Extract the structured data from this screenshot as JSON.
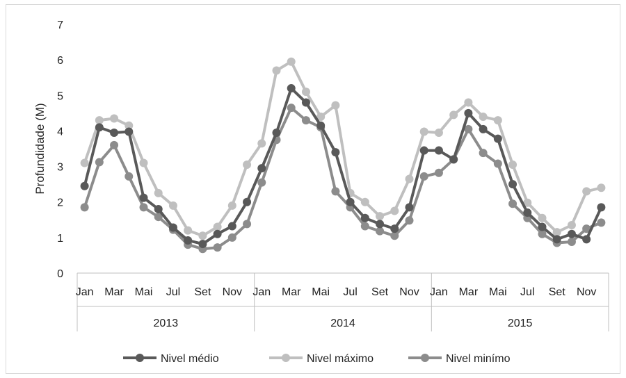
{
  "chart_data": {
    "type": "line",
    "title": "",
    "ylabel": "Profundidade (M)",
    "xlabel": "",
    "ylim": [
      0,
      7
    ],
    "y_ticks": [
      "0",
      "1",
      "2",
      "3",
      "4",
      "5",
      "6",
      "7"
    ],
    "x_tick_labels": [
      "Jan",
      "Mar",
      "Mai",
      "Jul",
      "Set",
      "Nov",
      "Jan",
      "Mar",
      "Mai",
      "Jul",
      "Set",
      "Nov",
      "Jan",
      "Mar",
      "Mai",
      "Jul",
      "Set",
      "Nov"
    ],
    "years": [
      "2013",
      "2014",
      "2015"
    ],
    "months_per_year": 12,
    "grid": false,
    "legend_position": "bottom",
    "series": [
      {
        "name": "Nivel médio",
        "color": "#595959",
        "values": [
          2.45,
          4.1,
          3.95,
          3.98,
          2.12,
          1.8,
          1.28,
          0.92,
          0.82,
          1.1,
          1.32,
          2.0,
          2.95,
          3.95,
          5.2,
          4.8,
          4.15,
          3.4,
          2.0,
          1.55,
          1.38,
          1.25,
          1.85,
          3.45,
          3.45,
          3.2,
          4.5,
          4.05,
          3.78,
          2.5,
          1.7,
          1.3,
          0.95,
          1.1,
          0.95,
          1.85
        ]
      },
      {
        "name": "Nivel máximo",
        "color": "#bfbfbf",
        "values": [
          3.1,
          4.3,
          4.35,
          4.15,
          3.1,
          2.25,
          1.9,
          1.2,
          1.05,
          1.3,
          1.9,
          3.05,
          3.65,
          5.7,
          5.95,
          5.1,
          4.4,
          4.72,
          2.25,
          2.0,
          1.6,
          1.75,
          2.65,
          3.98,
          3.95,
          4.45,
          4.8,
          4.4,
          4.3,
          3.05,
          1.98,
          1.55,
          1.15,
          1.35,
          2.3,
          2.4
        ]
      },
      {
        "name": "Nivel minímo",
        "color": "#8c8c8c",
        "values": [
          1.85,
          3.12,
          3.6,
          2.72,
          1.85,
          1.58,
          1.22,
          0.8,
          0.68,
          0.72,
          1.0,
          1.38,
          2.55,
          3.75,
          4.65,
          4.3,
          4.1,
          2.3,
          1.85,
          1.32,
          1.18,
          1.05,
          1.48,
          2.72,
          2.82,
          3.2,
          4.05,
          3.38,
          3.08,
          1.95,
          1.55,
          1.1,
          0.85,
          0.88,
          1.25,
          1.42
        ]
      }
    ]
  }
}
